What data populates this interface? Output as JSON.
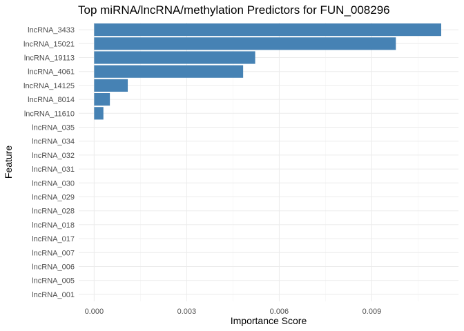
{
  "chart_data": {
    "type": "bar",
    "orientation": "horizontal",
    "title": "Top miRNA/lncRNA/methylation Predictors for FUN_008296",
    "xlabel": "Importance Score",
    "ylabel": "Feature",
    "categories": [
      "lncRNA_3433",
      "lncRNA_15021",
      "lncRNA_19113",
      "lncRNA_4061",
      "lncRNA_14125",
      "lncRNA_8014",
      "lncRNA_11610",
      "lncRNA_035",
      "lncRNA_034",
      "lncRNA_032",
      "lncRNA_031",
      "lncRNA_030",
      "lncRNA_029",
      "lncRNA_028",
      "lncRNA_018",
      "lncRNA_017",
      "lncRNA_007",
      "lncRNA_006",
      "lncRNA_005",
      "lncRNA_001"
    ],
    "values": [
      0.01125,
      0.00978,
      0.00522,
      0.00483,
      0.00109,
      0.00051,
      0.0003,
      0,
      0,
      0,
      0,
      0,
      0,
      0,
      0,
      0,
      0,
      0,
      0,
      0
    ],
    "xticks": [
      0,
      0.003,
      0.006,
      0.009
    ],
    "xtick_labels": [
      "0.000",
      "0.003",
      "0.006",
      "0.009"
    ],
    "xlim": [
      -0.0005,
      0.01181
    ],
    "grid": true,
    "bar_color": "#4682B4"
  }
}
